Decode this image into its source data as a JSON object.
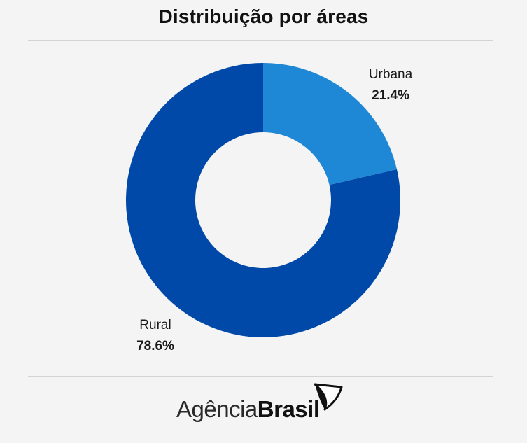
{
  "header": {
    "title": "Distribuição por áreas"
  },
  "chart_data": {
    "type": "pie",
    "donut": true,
    "title": "Distribuição por áreas",
    "slices": [
      {
        "name": "Urbana",
        "value": 21.4,
        "label": "21.4%",
        "color": "#1f88d6"
      },
      {
        "name": "Rural",
        "value": 78.6,
        "label": "78.6%",
        "color": "#0049a8"
      }
    ],
    "legend": "none"
  },
  "footer": {
    "logo_light": "Agência",
    "logo_bold": "Brasil"
  }
}
